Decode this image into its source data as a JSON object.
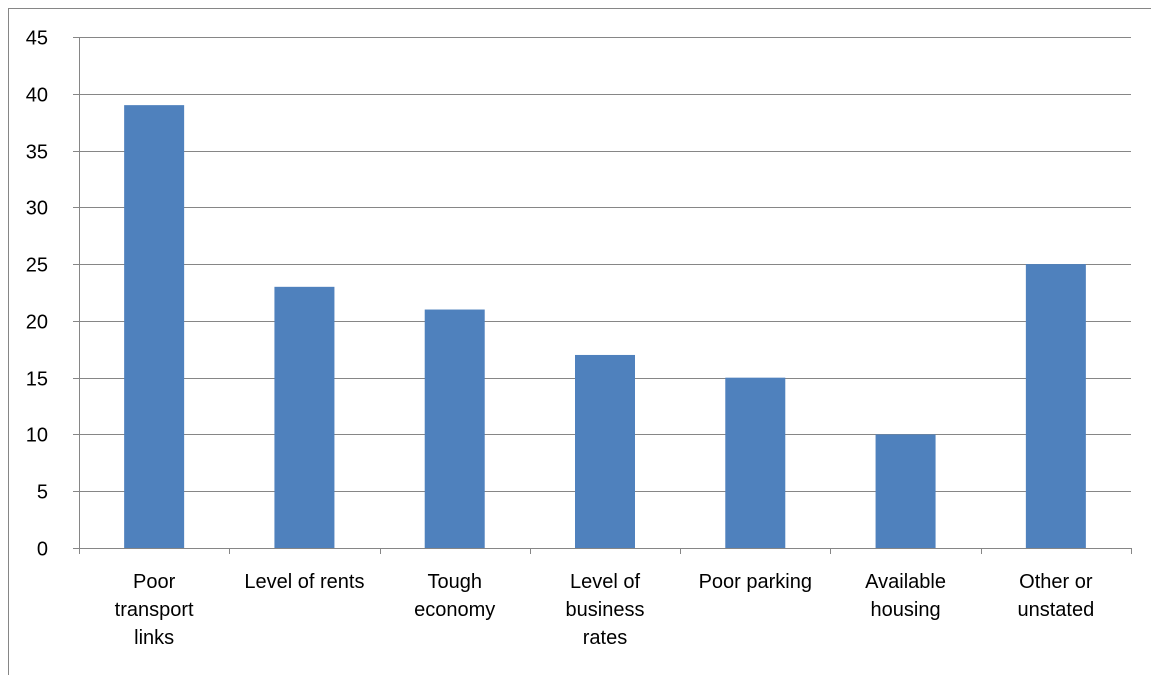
{
  "chart_data": {
    "type": "bar",
    "categories": [
      [
        "Poor",
        "transport",
        "links"
      ],
      [
        "Level of rents"
      ],
      [
        "Tough",
        "economy"
      ],
      [
        "Level of",
        "business",
        "rates"
      ],
      [
        "Poor parking"
      ],
      [
        "Available",
        "housing"
      ],
      [
        "Other or",
        "unstated"
      ]
    ],
    "values": [
      39,
      23,
      21,
      17,
      15,
      10,
      25
    ],
    "ylim": [
      0,
      45
    ],
    "yticks": [
      "0",
      "5",
      "10",
      "15",
      "20",
      "25",
      "30",
      "35",
      "40",
      "45"
    ],
    "title": "",
    "xlabel": "",
    "ylabel": "",
    "grid": true,
    "colors": {
      "bar": "#4f81bd",
      "grid": "#868686",
      "axis": "#868686"
    }
  }
}
